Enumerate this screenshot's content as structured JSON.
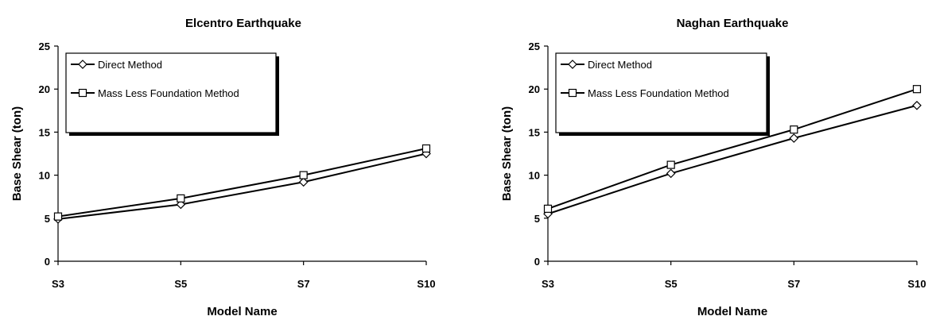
{
  "chart_data": [
    {
      "type": "line",
      "title": "Elcentro Earthquake",
      "xlabel": "Model Name",
      "ylabel": "Base Shear (ton)",
      "categories": [
        "S3",
        "S5",
        "S7",
        "S10"
      ],
      "ylim": [
        0,
        25
      ],
      "yticks": [
        "0",
        "5",
        "10",
        "15",
        "20",
        "25"
      ],
      "grid": false,
      "legend_position": "top-left",
      "series": [
        {
          "name": "Direct Method",
          "marker": "diamond",
          "values": [
            4.9,
            6.6,
            9.2,
            12.5
          ]
        },
        {
          "name": "Mass Less Foundation Method",
          "marker": "square",
          "values": [
            5.2,
            7.3,
            10.0,
            13.1
          ]
        }
      ]
    },
    {
      "type": "line",
      "title": "Naghan Earthquake",
      "xlabel": "Model Name",
      "ylabel": "Base Shear (ton)",
      "categories": [
        "S3",
        "S5",
        "S7",
        "S10"
      ],
      "ylim": [
        0,
        25
      ],
      "yticks": [
        "0",
        "5",
        "10",
        "15",
        "20",
        "25"
      ],
      "grid": false,
      "legend_position": "top-left",
      "series": [
        {
          "name": "Direct Method",
          "marker": "diamond",
          "values": [
            5.5,
            10.2,
            14.3,
            18.1
          ]
        },
        {
          "name": "Mass Less Foundation Method",
          "marker": "square",
          "values": [
            6.1,
            11.2,
            15.3,
            20.0
          ]
        }
      ]
    }
  ]
}
